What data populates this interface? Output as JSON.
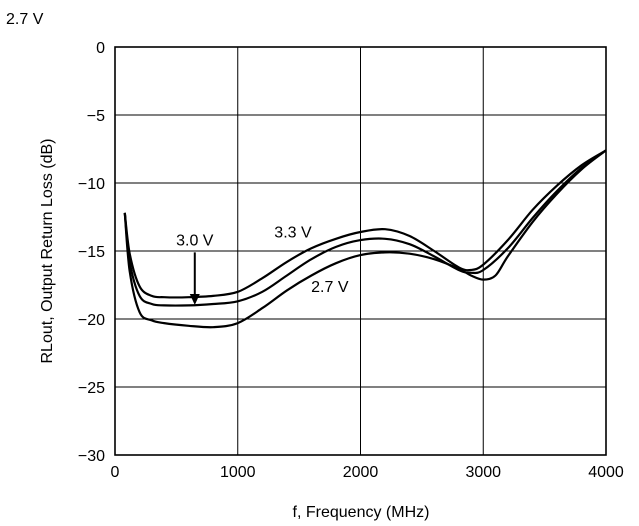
{
  "chart_data": {
    "type": "line",
    "corner_label": "2.7 V",
    "xlabel": "f, Frequency (MHz)",
    "ylabel": "RLout, Output Return Loss (dB)",
    "xlim": [
      0,
      4000
    ],
    "ylim": [
      -30,
      0
    ],
    "x_ticks": [
      0,
      1000,
      2000,
      3000,
      4000
    ],
    "y_ticks": [
      0,
      -5,
      -10,
      -15,
      -20,
      -25,
      -30
    ],
    "x_tick_labels": [
      "0",
      "1000",
      "2000",
      "3000",
      "4000"
    ],
    "y_tick_labels": [
      "0",
      "−5",
      "−10",
      "−15",
      "−20",
      "−25",
      "−30"
    ],
    "grid": true,
    "series": [
      {
        "name": "3.3 V",
        "x": [
          80,
          120,
          200,
          300,
          400,
          600,
          800,
          1000,
          1200,
          1400,
          1600,
          1800,
          2000,
          2200,
          2400,
          2600,
          2800,
          2900,
          3000,
          3200,
          3400,
          3600,
          3800,
          4000
        ],
        "y": [
          -12.2,
          -15.2,
          -17.6,
          -18.3,
          -18.4,
          -18.4,
          -18.3,
          -18.0,
          -17.0,
          -15.8,
          -14.8,
          -14.1,
          -13.6,
          -13.4,
          -13.9,
          -15.0,
          -16.2,
          -16.4,
          -16.0,
          -14.2,
          -12.0,
          -10.2,
          -8.7,
          -7.6
        ]
      },
      {
        "name": "3.0 V",
        "x": [
          80,
          120,
          200,
          300,
          400,
          600,
          800,
          1000,
          1200,
          1400,
          1600,
          1800,
          2000,
          2200,
          2400,
          2600,
          2800,
          2900,
          3000,
          3200,
          3400,
          3600,
          3800,
          4000
        ],
        "y": [
          -12.2,
          -15.8,
          -18.3,
          -18.9,
          -19.0,
          -19.0,
          -18.9,
          -18.7,
          -18.0,
          -16.8,
          -15.6,
          -14.7,
          -14.2,
          -14.1,
          -14.5,
          -15.4,
          -16.4,
          -16.6,
          -16.4,
          -14.8,
          -12.6,
          -10.6,
          -8.9,
          -7.6
        ]
      },
      {
        "name": "2.7 V",
        "x": [
          80,
          120,
          200,
          300,
          400,
          600,
          800,
          1000,
          1200,
          1400,
          1600,
          1800,
          2000,
          2200,
          2400,
          2600,
          2800,
          2900,
          3000,
          3100,
          3200,
          3400,
          3600,
          3800,
          4000
        ],
        "y": [
          -12.2,
          -16.5,
          -19.5,
          -20.1,
          -20.3,
          -20.5,
          -20.6,
          -20.3,
          -19.2,
          -17.9,
          -16.8,
          -15.9,
          -15.3,
          -15.1,
          -15.2,
          -15.6,
          -16.3,
          -16.8,
          -17.1,
          -16.8,
          -15.4,
          -12.9,
          -10.8,
          -9.0,
          -7.6
        ]
      }
    ],
    "annotations": [
      {
        "text": "3.0 V",
        "x": 650,
        "y": -14.6
      },
      {
        "text": "3.3 V",
        "x": 1450,
        "y": -14.0
      },
      {
        "text": "2.7 V",
        "x": 1750,
        "y": -18.0
      }
    ],
    "arrow": {
      "from": [
        650,
        -15.1
      ],
      "to": [
        650,
        -18.9
      ]
    }
  }
}
